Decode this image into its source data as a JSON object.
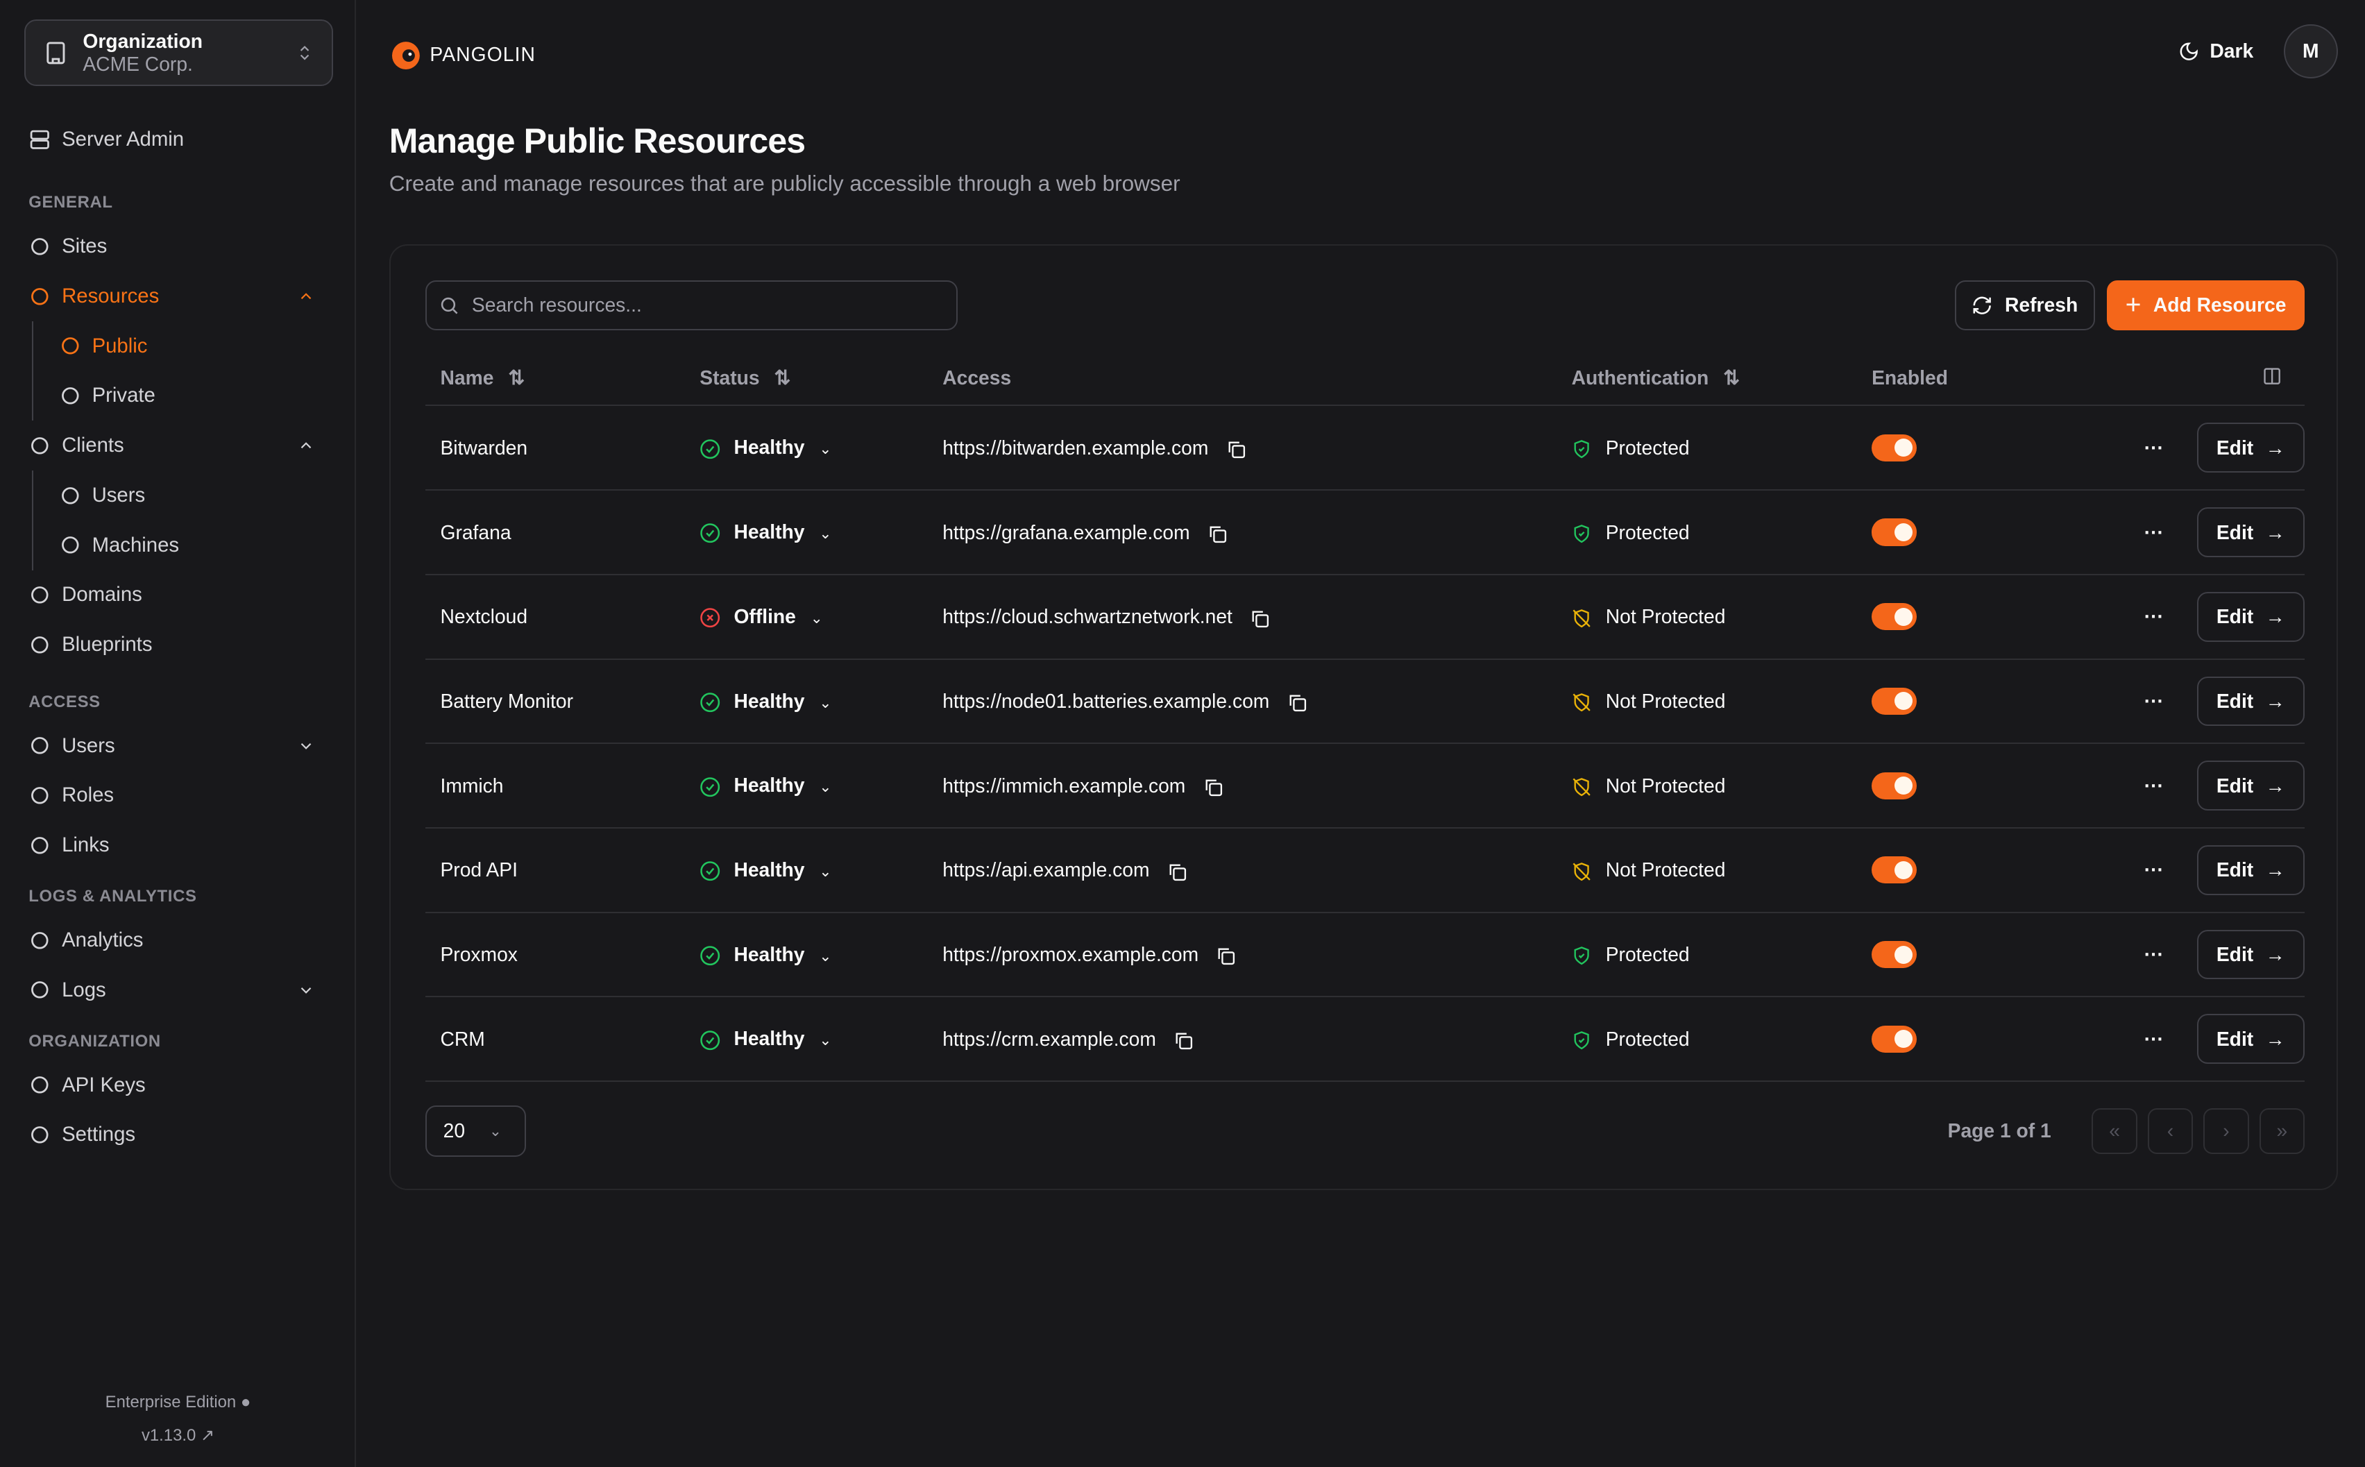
{
  "org": {
    "label": "Organization",
    "name": "ACME Corp."
  },
  "sidebar": {
    "server_admin": "Server Admin",
    "sections": [
      {
        "title": "GENERAL",
        "items": [
          {
            "label": "Sites",
            "icon": "sites-icon"
          },
          {
            "label": "Resources",
            "icon": "resources-icon",
            "active": true,
            "chevron": "up",
            "children": [
              {
                "label": "Public",
                "icon": "globe-icon",
                "active": true
              },
              {
                "label": "Private",
                "icon": "globe-lock-icon"
              }
            ]
          },
          {
            "label": "Clients",
            "icon": "monitor-icon",
            "chevron": "up",
            "children": [
              {
                "label": "Users",
                "icon": "laptop-icon"
              },
              {
                "label": "Machines",
                "icon": "server-icon"
              }
            ]
          },
          {
            "label": "Domains",
            "icon": "globe-icon"
          },
          {
            "label": "Blueprints",
            "icon": "file-icon"
          }
        ]
      },
      {
        "title": "ACCESS",
        "items": [
          {
            "label": "Users",
            "icon": "user-icon",
            "chevron": "down"
          },
          {
            "label": "Roles",
            "icon": "users-icon"
          },
          {
            "label": "Links",
            "icon": "link-icon"
          }
        ]
      },
      {
        "title": "LOGS & ANALYTICS",
        "items": [
          {
            "label": "Analytics",
            "icon": "chart-icon"
          },
          {
            "label": "Logs",
            "icon": "list-icon",
            "chevron": "down"
          }
        ]
      },
      {
        "title": "ORGANIZATION",
        "items": [
          {
            "label": "API Keys",
            "icon": "key-icon"
          },
          {
            "label": "Settings",
            "icon": "gear-icon"
          }
        ]
      }
    ],
    "edition": "Enterprise Edition",
    "version": "v1.13.0"
  },
  "header": {
    "brand": "PANGOLIN",
    "theme": "Dark",
    "avatar": "M"
  },
  "page": {
    "title": "Manage Public Resources",
    "description": "Create and manage resources that are publicly accessible through a web browser"
  },
  "toolbar": {
    "search_placeholder": "Search resources...",
    "refresh": "Refresh",
    "add": "Add Resource"
  },
  "table": {
    "columns": [
      "Name",
      "Status",
      "Access",
      "Authentication",
      "Enabled"
    ],
    "edit_label": "Edit",
    "rows": [
      {
        "name": "Bitwarden",
        "status": "Healthy",
        "access": "https://bitwarden.example.com",
        "auth": "Protected",
        "enabled": true
      },
      {
        "name": "Grafana",
        "status": "Healthy",
        "access": "https://grafana.example.com",
        "auth": "Protected",
        "enabled": true
      },
      {
        "name": "Nextcloud",
        "status": "Offline",
        "access": "https://cloud.schwartznetwork.net",
        "auth": "Not Protected",
        "enabled": true
      },
      {
        "name": "Battery Monitor",
        "status": "Healthy",
        "access": "https://node01.batteries.example.com",
        "auth": "Not Protected",
        "enabled": true
      },
      {
        "name": "Immich",
        "status": "Healthy",
        "access": "https://immich.example.com",
        "auth": "Not Protected",
        "enabled": true
      },
      {
        "name": "Prod API",
        "status": "Healthy",
        "access": "https://api.example.com",
        "auth": "Not Protected",
        "enabled": true
      },
      {
        "name": "Proxmox",
        "status": "Healthy",
        "access": "https://proxmox.example.com",
        "auth": "Protected",
        "enabled": true
      },
      {
        "name": "CRM",
        "status": "Healthy",
        "access": "https://crm.example.com",
        "auth": "Protected",
        "enabled": true
      }
    ]
  },
  "pagination": {
    "page_size": "20",
    "page_text": "Page 1 of 1"
  },
  "colors": {
    "accent": "#f4661a",
    "healthy": "#22c55e",
    "offline": "#ef4444",
    "warning": "#eab308",
    "background": "#18181b"
  }
}
